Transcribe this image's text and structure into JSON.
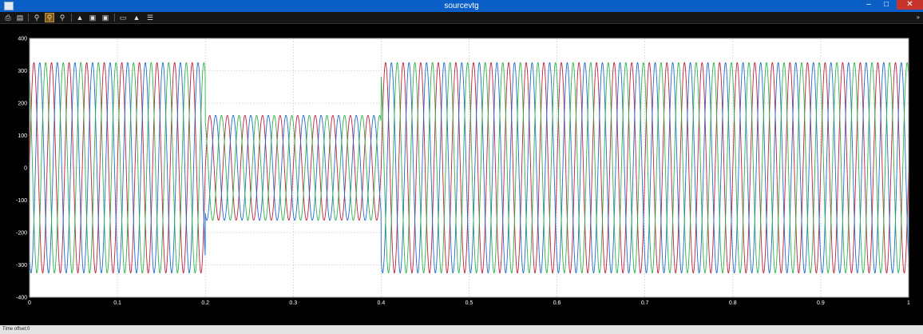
{
  "window": {
    "title": "sourcevtg",
    "minimize": "–",
    "maximize": "□",
    "close": "✕"
  },
  "toolbar": {
    "buttons": [
      {
        "icon": "print-icon",
        "glyph": "⎙"
      },
      {
        "icon": "parameters-icon",
        "glyph": "▤"
      },
      {
        "icon": "zoom-icon",
        "glyph": "⚲"
      },
      {
        "icon": "zoom-x-icon",
        "glyph": "⚲"
      },
      {
        "icon": "zoom-y-icon",
        "glyph": "⚲"
      },
      {
        "icon": "autoscale-icon",
        "glyph": "▲"
      },
      {
        "icon": "save-axes-icon",
        "glyph": "▣"
      },
      {
        "icon": "restore-axes-icon",
        "glyph": "▣"
      },
      {
        "icon": "floating-scope-icon",
        "glyph": "▭"
      },
      {
        "icon": "lock-axes-icon",
        "glyph": "▲"
      },
      {
        "icon": "signal-selection-icon",
        "glyph": "☰"
      }
    ],
    "overflow": "»"
  },
  "status": {
    "time_offset_label": "Time offset:",
    "time_offset_value": "0"
  },
  "colors": {
    "grid": "#f5f5f5",
    "plot_bg": "#ffffff",
    "phase_a": "#c0203c",
    "phase_b": "#1f6bd0",
    "phase_c": "#2db24a"
  },
  "chart_data": {
    "type": "line",
    "title": "",
    "xlabel": "",
    "ylabel": "",
    "xlim": [
      0,
      1
    ],
    "ylim": [
      -400,
      400
    ],
    "x_ticks": [
      "0",
      "0.1",
      "0.2",
      "0.3",
      "0.4",
      "0.5",
      "0.6",
      "0.7",
      "0.8",
      "0.9",
      "1"
    ],
    "y_ticks": [
      "400",
      "300",
      "200",
      "100",
      "0",
      "-100",
      "-200",
      "-300",
      "-400"
    ],
    "grid": true,
    "frequency_hz": 50,
    "amplitude_segments": [
      {
        "x_start": 0,
        "x_end": 0.2,
        "amplitude": 325
      },
      {
        "x_start": 0.2,
        "x_end": 0.4,
        "amplitude": 162
      },
      {
        "x_start": 0.4,
        "x_end": 1.0,
        "amplitude": 325
      }
    ],
    "series": [
      {
        "phase_deg": 0,
        "color": "#c0203c"
      },
      {
        "phase_deg": -120,
        "color": "#1f6bd0"
      },
      {
        "phase_deg": 120,
        "color": "#2db24a"
      }
    ]
  }
}
